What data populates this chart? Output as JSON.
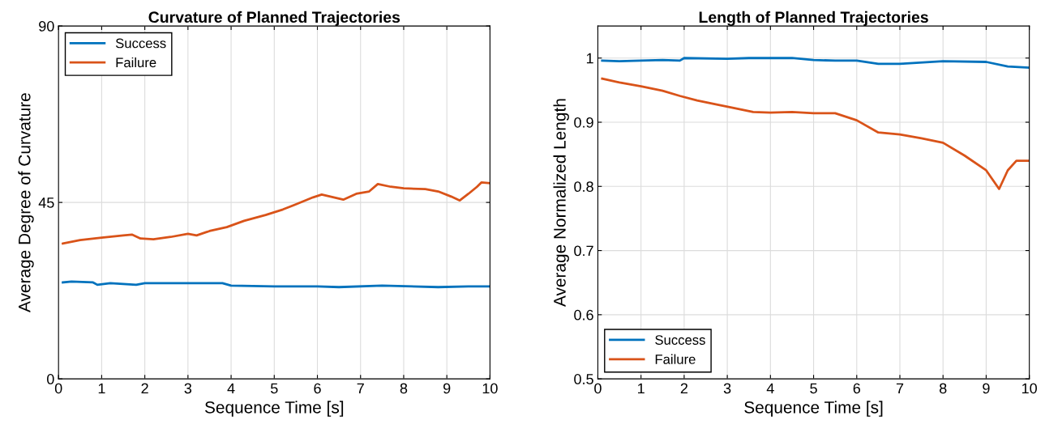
{
  "chart_data": [
    {
      "type": "line",
      "title": "Curvature of Planned Trajectories",
      "xlabel": "Sequence Time [s]",
      "ylabel": "Average Degree of Curvature",
      "xlim": [
        0,
        10
      ],
      "ylim": [
        0,
        90
      ],
      "xticks": [
        0,
        1,
        2,
        3,
        4,
        5,
        6,
        7,
        8,
        9,
        10
      ],
      "yticks": [
        0,
        45,
        90
      ],
      "grid": true,
      "legend": "top left",
      "series": [
        {
          "name": "Success",
          "color": "#0072bd",
          "x": [
            0.1,
            0.3,
            0.8,
            0.9,
            1.2,
            1.5,
            1.8,
            2.0,
            3.0,
            3.8,
            4.0,
            5.0,
            6.0,
            6.5,
            7.5,
            8.8,
            9.5,
            10
          ],
          "values": [
            24.6,
            24.8,
            24.6,
            24.0,
            24.4,
            24.2,
            24.0,
            24.4,
            24.4,
            24.4,
            23.8,
            23.6,
            23.6,
            23.4,
            23.8,
            23.4,
            23.6,
            23.6
          ]
        },
        {
          "name": "Failure",
          "color": "#d95319",
          "x": [
            0.1,
            0.5,
            1.0,
            1.5,
            1.7,
            1.9,
            2.2,
            2.6,
            3.0,
            3.2,
            3.5,
            3.9,
            4.3,
            4.8,
            5.2,
            5.5,
            5.9,
            6.1,
            6.3,
            6.6,
            6.9,
            7.2,
            7.4,
            7.7,
            8.0,
            8.5,
            8.8,
            9.1,
            9.3,
            9.5,
            9.7,
            9.8,
            10
          ],
          "values": [
            34.5,
            35.4,
            36.0,
            36.6,
            36.8,
            35.8,
            35.6,
            36.2,
            37.0,
            36.6,
            37.7,
            38.7,
            40.3,
            41.8,
            43.2,
            44.5,
            46.3,
            47.0,
            46.5,
            45.7,
            47.2,
            47.8,
            49.7,
            49.0,
            48.6,
            48.4,
            47.8,
            46.5,
            45.5,
            47.2,
            49.0,
            50.1,
            49.9
          ]
        }
      ]
    },
    {
      "type": "line",
      "title": "Length of Planned Trajectories",
      "xlabel": "Sequence Time [s]",
      "ylabel": "Average Normalized Length",
      "xlim": [
        0,
        10
      ],
      "ylim": [
        0.5,
        1.05
      ],
      "xticks": [
        0,
        1,
        2,
        3,
        4,
        5,
        6,
        7,
        8,
        9,
        10
      ],
      "yticks": [
        0.5,
        0.6,
        0.7,
        0.8,
        0.9,
        1
      ],
      "grid": true,
      "legend": "bottom left",
      "series": [
        {
          "name": "Success",
          "color": "#0072bd",
          "x": [
            0.1,
            0.5,
            1.0,
            1.5,
            1.9,
            2.0,
            3.0,
            3.5,
            4.5,
            5.0,
            5.5,
            6.0,
            6.5,
            7.0,
            8.0,
            9.0,
            9.5,
            10
          ],
          "values": [
            0.996,
            0.995,
            0.996,
            0.997,
            0.996,
            1.0,
            0.999,
            1.0,
            1.0,
            0.997,
            0.996,
            0.996,
            0.991,
            0.991,
            0.995,
            0.994,
            0.987,
            0.985
          ]
        },
        {
          "name": "Failure",
          "color": "#d95319",
          "x": [
            0.1,
            0.5,
            1.0,
            1.5,
            1.9,
            2.3,
            2.8,
            3.1,
            3.6,
            4.0,
            4.5,
            5.0,
            5.5,
            6.0,
            6.5,
            7.0,
            7.5,
            8.0,
            8.5,
            9.0,
            9.3,
            9.5,
            9.7,
            10
          ],
          "values": [
            0.968,
            0.962,
            0.956,
            0.949,
            0.941,
            0.934,
            0.927,
            0.923,
            0.916,
            0.915,
            0.916,
            0.914,
            0.914,
            0.903,
            0.884,
            0.881,
            0.875,
            0.868,
            0.848,
            0.825,
            0.796,
            0.825,
            0.84,
            0.84
          ]
        }
      ]
    }
  ]
}
